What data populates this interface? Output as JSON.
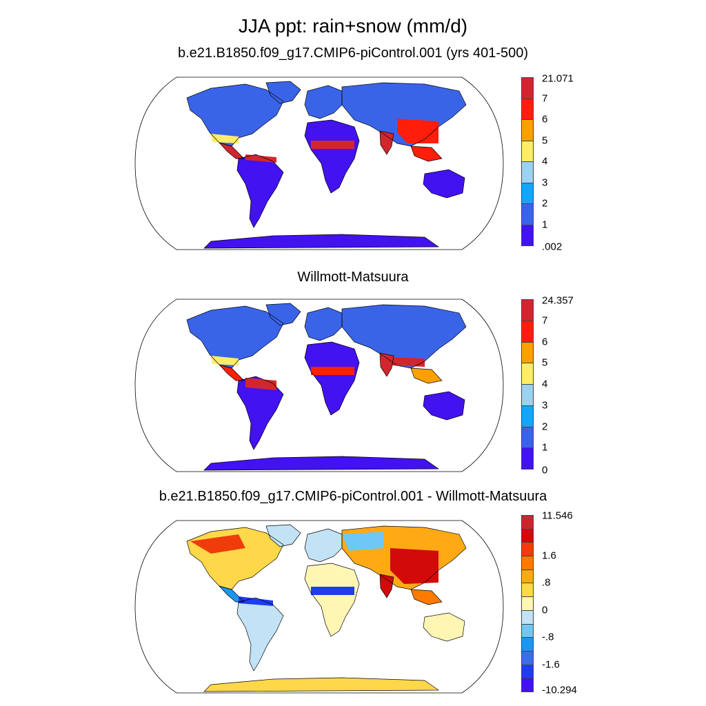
{
  "main_title": "JJA ppt: rain+snow (mm/d)",
  "panels": [
    {
      "title": "b.e21.B1850.f09_g17.CMIP6-piControl.001 (yrs 401-500)",
      "colors": [
        "#4212f0",
        "#3a64e8",
        "#14a6f5",
        "#9ad2f2",
        "#ffed69",
        "#ffa000",
        "#ff1e0a",
        "#d2262e"
      ],
      "labels": [
        ".002",
        "1",
        "2",
        "3",
        "4",
        "5",
        "6",
        "7",
        "21.071"
      ]
    },
    {
      "title": "Willmott-Matsuura",
      "colors": [
        "#4212f0",
        "#3a64e8",
        "#14a6f5",
        "#9ad2f2",
        "#ffed69",
        "#ffa000",
        "#ff1e0a",
        "#d2262e"
      ],
      "labels": [
        "0",
        "1",
        "2",
        "3",
        "4",
        "5",
        "6",
        "7",
        "24.357"
      ]
    },
    {
      "title": "b.e21.B1850.f09_g17.CMIP6-piControl.001 - Willmott-Matsuura",
      "colors": [
        "#4212f0",
        "#1e3cf0",
        "#3a6ee6",
        "#1e96f0",
        "#6ec8f5",
        "#c2e3f5",
        "#fff6b4",
        "#ffd84a",
        "#ffaa14",
        "#ff7a00",
        "#f03c0a",
        "#d20a0a",
        "#c8282d"
      ],
      "labels": [
        "-10.294",
        "",
        "-1.6",
        "",
        "-.8",
        "",
        "0",
        "",
        ".8",
        "",
        "1.6",
        "",
        "",
        "11.546"
      ]
    }
  ]
}
